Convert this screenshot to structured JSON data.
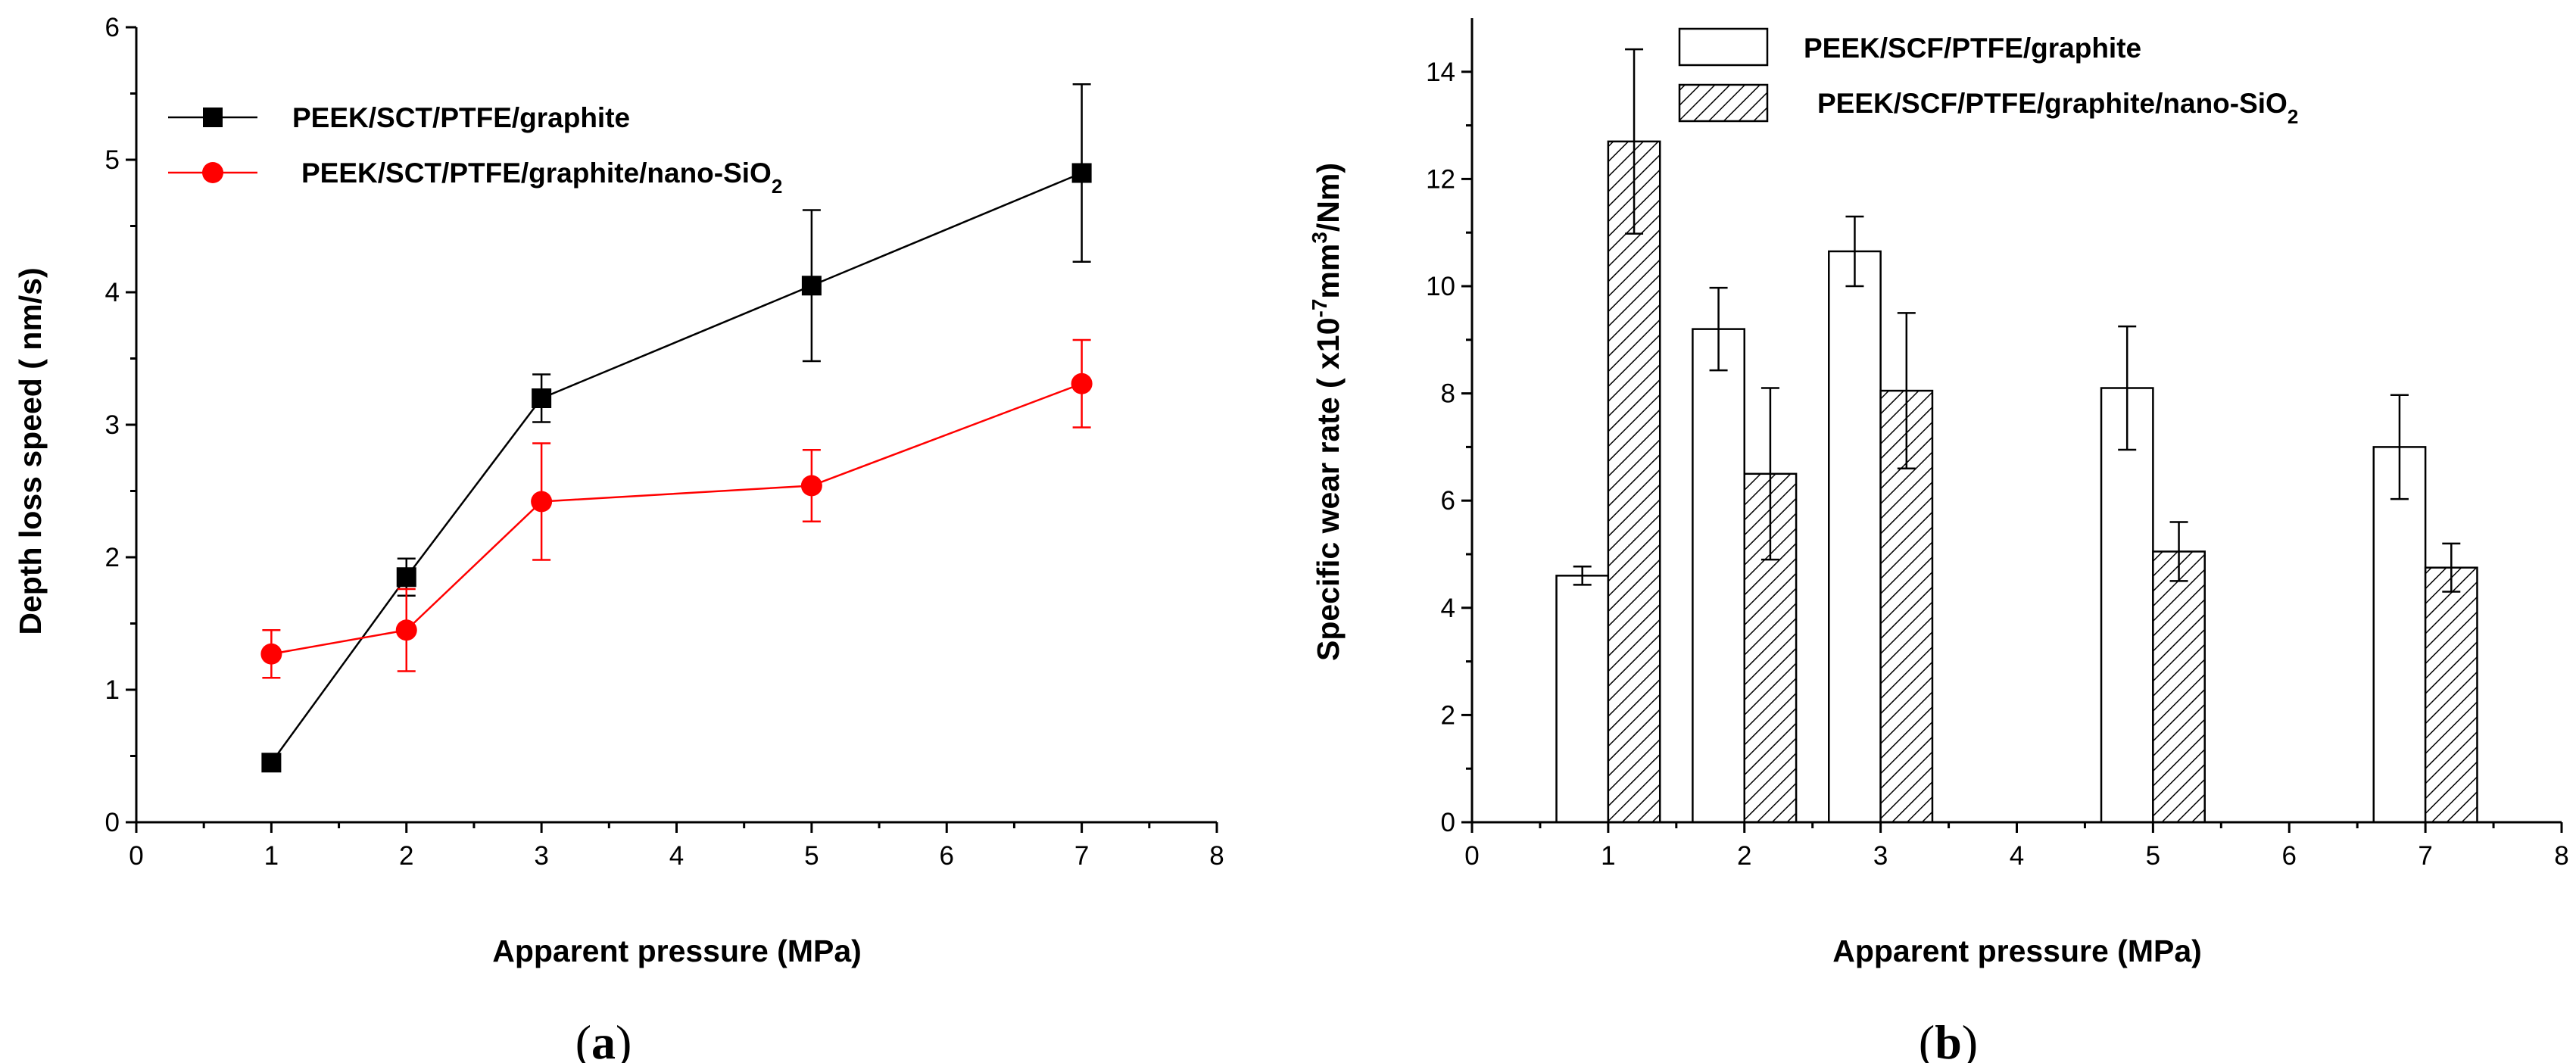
{
  "chart_data": [
    {
      "id": "a",
      "type": "line",
      "panel_label": {
        "open": "(",
        "letter": "a",
        "close": ")"
      },
      "xlabel": "Apparent pressure (MPa)",
      "ylabel": "Depth loss speed ( nm/s)",
      "xlim": [
        0,
        8
      ],
      "ylim": [
        0,
        6
      ],
      "xticks": [
        0,
        1,
        2,
        3,
        4,
        5,
        6,
        7,
        8
      ],
      "yticks": [
        0,
        1,
        2,
        3,
        4,
        5,
        6
      ],
      "legend_position": "top-left",
      "series": [
        {
          "name": "PEEK/SCT/PTFE/graphite",
          "color": "#000000",
          "marker": "square",
          "x": [
            1,
            2,
            3,
            5,
            7
          ],
          "y": [
            0.45,
            1.85,
            3.2,
            4.05,
            4.9
          ],
          "err": [
            0.0,
            0.14,
            0.18,
            0.57,
            0.67
          ]
        },
        {
          "name": "PEEK/SCT/PTFE/graphite/nano-SiO",
          "name_subscript": "2",
          "color": "#ff0000",
          "marker": "circle",
          "x": [
            1,
            2,
            3,
            5,
            7
          ],
          "y": [
            1.27,
            1.45,
            2.42,
            2.54,
            3.31
          ],
          "err": [
            0.18,
            0.31,
            0.44,
            0.27,
            0.33
          ]
        }
      ]
    },
    {
      "id": "b",
      "type": "bar",
      "panel_label": {
        "open": "(",
        "letter": "b",
        "close": ")"
      },
      "xlabel": "Apparent pressure (MPa)",
      "ylabel": "Specific wear rate ( x10",
      "ylabel_sup1": "-7",
      "ylabel_mid": "mm",
      "ylabel_sup2": "3",
      "ylabel_end": "/Nm)",
      "xlim": [
        0,
        8
      ],
      "ylim": [
        0,
        15
      ],
      "xticks": [
        0,
        1,
        2,
        3,
        4,
        5,
        6,
        7,
        8
      ],
      "yticks": [
        0,
        2,
        4,
        6,
        8,
        10,
        12,
        14
      ],
      "legend_position": "top",
      "series": [
        {
          "name": "PEEK/SCF/PTFE/graphite",
          "fill": "open",
          "x": [
            1,
            2,
            3,
            5,
            7
          ],
          "values": [
            4.6,
            9.2,
            10.65,
            8.1,
            7.0
          ],
          "err": [
            0.17,
            0.77,
            0.65,
            1.15,
            0.97
          ]
        },
        {
          "name": "PEEK/SCF/PTFE/graphite/nano-SiO",
          "name_subscript": "2",
          "fill": "hatched",
          "x": [
            1,
            2,
            3,
            5,
            7
          ],
          "values": [
            12.7,
            6.5,
            8.05,
            5.05,
            4.75
          ],
          "err": [
            1.72,
            1.6,
            1.45,
            0.55,
            0.45
          ]
        }
      ]
    }
  ]
}
